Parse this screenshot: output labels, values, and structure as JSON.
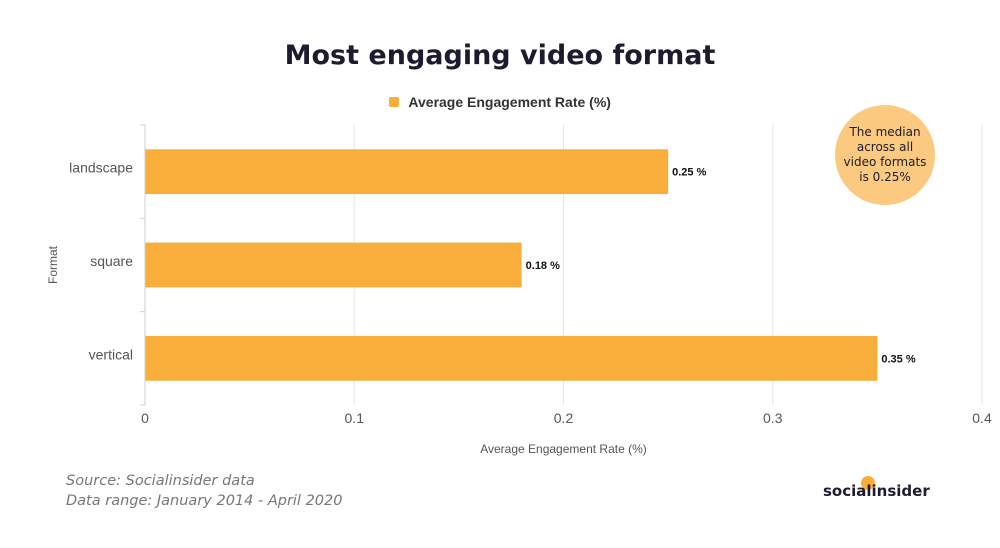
{
  "colors": {
    "bar": "#f9ad3b",
    "bubble": "#fbc97f",
    "brand_dot": "#f9ad3b",
    "grid": "#e6e6e6"
  },
  "chart_data": {
    "type": "bar",
    "orientation": "horizontal",
    "title": "Most engaging video format",
    "categories": [
      "landscape",
      "square",
      "vertical"
    ],
    "series": [
      {
        "name": "Average Engagement Rate (%)",
        "values": [
          0.25,
          0.18,
          0.35
        ]
      }
    ],
    "data_labels": [
      "0.25 %",
      "0.18 %",
      "0.35 %"
    ],
    "xlabel": "Average Engagement Rate (%)",
    "ylabel": "Format",
    "xlim": [
      0,
      0.4
    ],
    "x_ticks": [
      "0",
      "0.1",
      "0.2",
      "0.3",
      "0.4"
    ],
    "grid": true,
    "legend_position": "top-center",
    "annotation": "The median across all video formats is 0.25%"
  },
  "footer": {
    "source": "Source: Socialinsider data",
    "range": "Data range: January 2014 - April 2020",
    "brand": "socialinsider"
  }
}
